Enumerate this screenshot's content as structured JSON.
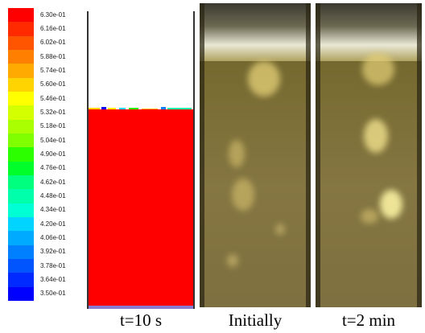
{
  "colorbar": {
    "labels": [
      "6.30e-01",
      "6.16e-01",
      "6.02e-01",
      "5.88e-01",
      "5.74e-01",
      "5.60e-01",
      "5.46e-01",
      "5.32e-01",
      "5.18e-01",
      "5.04e-01",
      "4.90e-01",
      "4.76e-01",
      "4.62e-01",
      "4.48e-01",
      "4.34e-01",
      "4.20e-01",
      "4.06e-01",
      "3.92e-01",
      "3.78e-01",
      "3.64e-01",
      "3.50e-01"
    ],
    "colors": [
      "#ff0000",
      "#ff2a00",
      "#ff5500",
      "#ff7f00",
      "#ffaa00",
      "#ffd400",
      "#ffff00",
      "#d4ff00",
      "#aaff00",
      "#7fff00",
      "#2bff00",
      "#00ff2a",
      "#00ff7f",
      "#00ffaa",
      "#00ffd4",
      "#00d4ff",
      "#00aaff",
      "#007fff",
      "#0055ff",
      "#002aff",
      "#0000ff"
    ]
  },
  "simulation": {
    "bed_color": "#ff0000"
  },
  "captions": {
    "sim": "t=10 s",
    "initial": "Initially",
    "two_min": "t=2 min"
  }
}
